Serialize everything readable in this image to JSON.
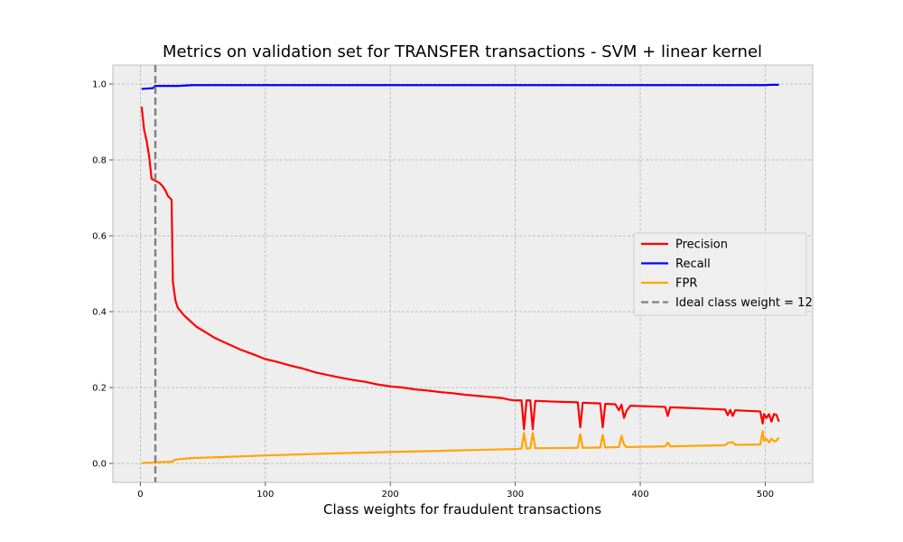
{
  "chart_data": {
    "type": "line",
    "title": "Metrics on validation set for TRANSFER transactions - SVM + linear kernel",
    "xlabel": "Class weights for fraudulent transactions",
    "ylabel": "",
    "xlim": [
      -22,
      538
    ],
    "ylim": [
      -0.05,
      1.05
    ],
    "xticks": [
      0,
      100,
      200,
      300,
      400,
      500
    ],
    "yticks": [
      0.0,
      0.2,
      0.4,
      0.6,
      0.8,
      1.0
    ],
    "xtick_labels": [
      "0",
      "100",
      "200",
      "300",
      "400",
      "500"
    ],
    "ytick_labels": [
      "0.0",
      "0.2",
      "0.4",
      "0.6",
      "0.8",
      "1.0"
    ],
    "grid": true,
    "legend_position": "center-right",
    "vline": {
      "x": 12,
      "name": "Ideal class weight = 12",
      "color": "#808080",
      "style": "dashed"
    },
    "series": [
      {
        "name": "Precision",
        "color": "#ff0000",
        "points": [
          [
            1,
            0.94
          ],
          [
            3,
            0.88
          ],
          [
            5,
            0.85
          ],
          [
            7,
            0.81
          ],
          [
            9,
            0.75
          ],
          [
            12,
            0.745
          ],
          [
            15,
            0.74
          ],
          [
            18,
            0.73
          ],
          [
            20,
            0.72
          ],
          [
            22,
            0.705
          ],
          [
            25,
            0.695
          ],
          [
            26,
            0.48
          ],
          [
            28,
            0.43
          ],
          [
            30,
            0.41
          ],
          [
            35,
            0.39
          ],
          [
            40,
            0.375
          ],
          [
            45,
            0.36
          ],
          [
            50,
            0.35
          ],
          [
            60,
            0.33
          ],
          [
            70,
            0.315
          ],
          [
            80,
            0.3
          ],
          [
            90,
            0.288
          ],
          [
            100,
            0.275
          ],
          [
            110,
            0.267
          ],
          [
            120,
            0.258
          ],
          [
            130,
            0.25
          ],
          [
            140,
            0.24
          ],
          [
            150,
            0.233
          ],
          [
            160,
            0.226
          ],
          [
            170,
            0.22
          ],
          [
            180,
            0.215
          ],
          [
            190,
            0.208
          ],
          [
            200,
            0.203
          ],
          [
            210,
            0.2
          ],
          [
            220,
            0.195
          ],
          [
            230,
            0.192
          ],
          [
            240,
            0.188
          ],
          [
            250,
            0.185
          ],
          [
            260,
            0.181
          ],
          [
            270,
            0.178
          ],
          [
            280,
            0.175
          ],
          [
            290,
            0.172
          ],
          [
            295,
            0.168
          ],
          [
            300,
            0.166
          ],
          [
            305,
            0.166
          ],
          [
            307,
            0.09
          ],
          [
            309,
            0.166
          ],
          [
            312,
            0.166
          ],
          [
            314,
            0.09
          ],
          [
            316,
            0.165
          ],
          [
            330,
            0.163
          ],
          [
            350,
            0.161
          ],
          [
            352,
            0.095
          ],
          [
            354,
            0.16
          ],
          [
            368,
            0.158
          ],
          [
            370,
            0.095
          ],
          [
            372,
            0.157
          ],
          [
            380,
            0.156
          ],
          [
            383,
            0.14
          ],
          [
            385,
            0.155
          ],
          [
            387,
            0.12
          ],
          [
            389,
            0.138
          ],
          [
            392,
            0.152
          ],
          [
            400,
            0.151
          ],
          [
            420,
            0.149
          ],
          [
            422,
            0.125
          ],
          [
            424,
            0.148
          ],
          [
            440,
            0.146
          ],
          [
            460,
            0.143
          ],
          [
            468,
            0.142
          ],
          [
            470,
            0.127
          ],
          [
            472,
            0.141
          ],
          [
            474,
            0.125
          ],
          [
            476,
            0.14
          ],
          [
            490,
            0.138
          ],
          [
            496,
            0.137
          ],
          [
            498,
            0.105
          ],
          [
            499,
            0.13
          ],
          [
            501,
            0.12
          ],
          [
            503,
            0.13
          ],
          [
            505,
            0.11
          ],
          [
            507,
            0.13
          ],
          [
            509,
            0.128
          ],
          [
            511,
            0.11
          ]
        ]
      },
      {
        "name": "Recall",
        "color": "#0000ff",
        "points": [
          [
            1,
            0.987
          ],
          [
            5,
            0.988
          ],
          [
            10,
            0.989
          ],
          [
            12,
            0.995
          ],
          [
            20,
            0.995
          ],
          [
            30,
            0.995
          ],
          [
            42,
            0.997
          ],
          [
            100,
            0.997
          ],
          [
            200,
            0.997
          ],
          [
            300,
            0.997
          ],
          [
            400,
            0.997
          ],
          [
            500,
            0.997
          ],
          [
            505,
            0.998
          ],
          [
            511,
            0.998
          ]
        ]
      },
      {
        "name": "FPR",
        "color": "#ffa500",
        "points": [
          [
            1,
            0.001
          ],
          [
            10,
            0.002
          ],
          [
            20,
            0.004
          ],
          [
            25,
            0.004
          ],
          [
            28,
            0.01
          ],
          [
            40,
            0.014
          ],
          [
            60,
            0.016
          ],
          [
            100,
            0.021
          ],
          [
            150,
            0.026
          ],
          [
            200,
            0.03
          ],
          [
            250,
            0.034
          ],
          [
            290,
            0.037
          ],
          [
            300,
            0.038
          ],
          [
            305,
            0.039
          ],
          [
            307,
            0.08
          ],
          [
            309,
            0.039
          ],
          [
            312,
            0.04
          ],
          [
            314,
            0.08
          ],
          [
            316,
            0.04
          ],
          [
            350,
            0.041
          ],
          [
            352,
            0.077
          ],
          [
            354,
            0.041
          ],
          [
            368,
            0.042
          ],
          [
            370,
            0.075
          ],
          [
            372,
            0.042
          ],
          [
            383,
            0.043
          ],
          [
            385,
            0.073
          ],
          [
            387,
            0.05
          ],
          [
            389,
            0.043
          ],
          [
            420,
            0.045
          ],
          [
            422,
            0.055
          ],
          [
            424,
            0.045
          ],
          [
            468,
            0.048
          ],
          [
            470,
            0.054
          ],
          [
            474,
            0.056
          ],
          [
            476,
            0.049
          ],
          [
            496,
            0.05
          ],
          [
            498,
            0.085
          ],
          [
            499,
            0.06
          ],
          [
            501,
            0.065
          ],
          [
            503,
            0.055
          ],
          [
            505,
            0.065
          ],
          [
            507,
            0.058
          ],
          [
            509,
            0.06
          ],
          [
            511,
            0.068
          ]
        ]
      }
    ]
  }
}
